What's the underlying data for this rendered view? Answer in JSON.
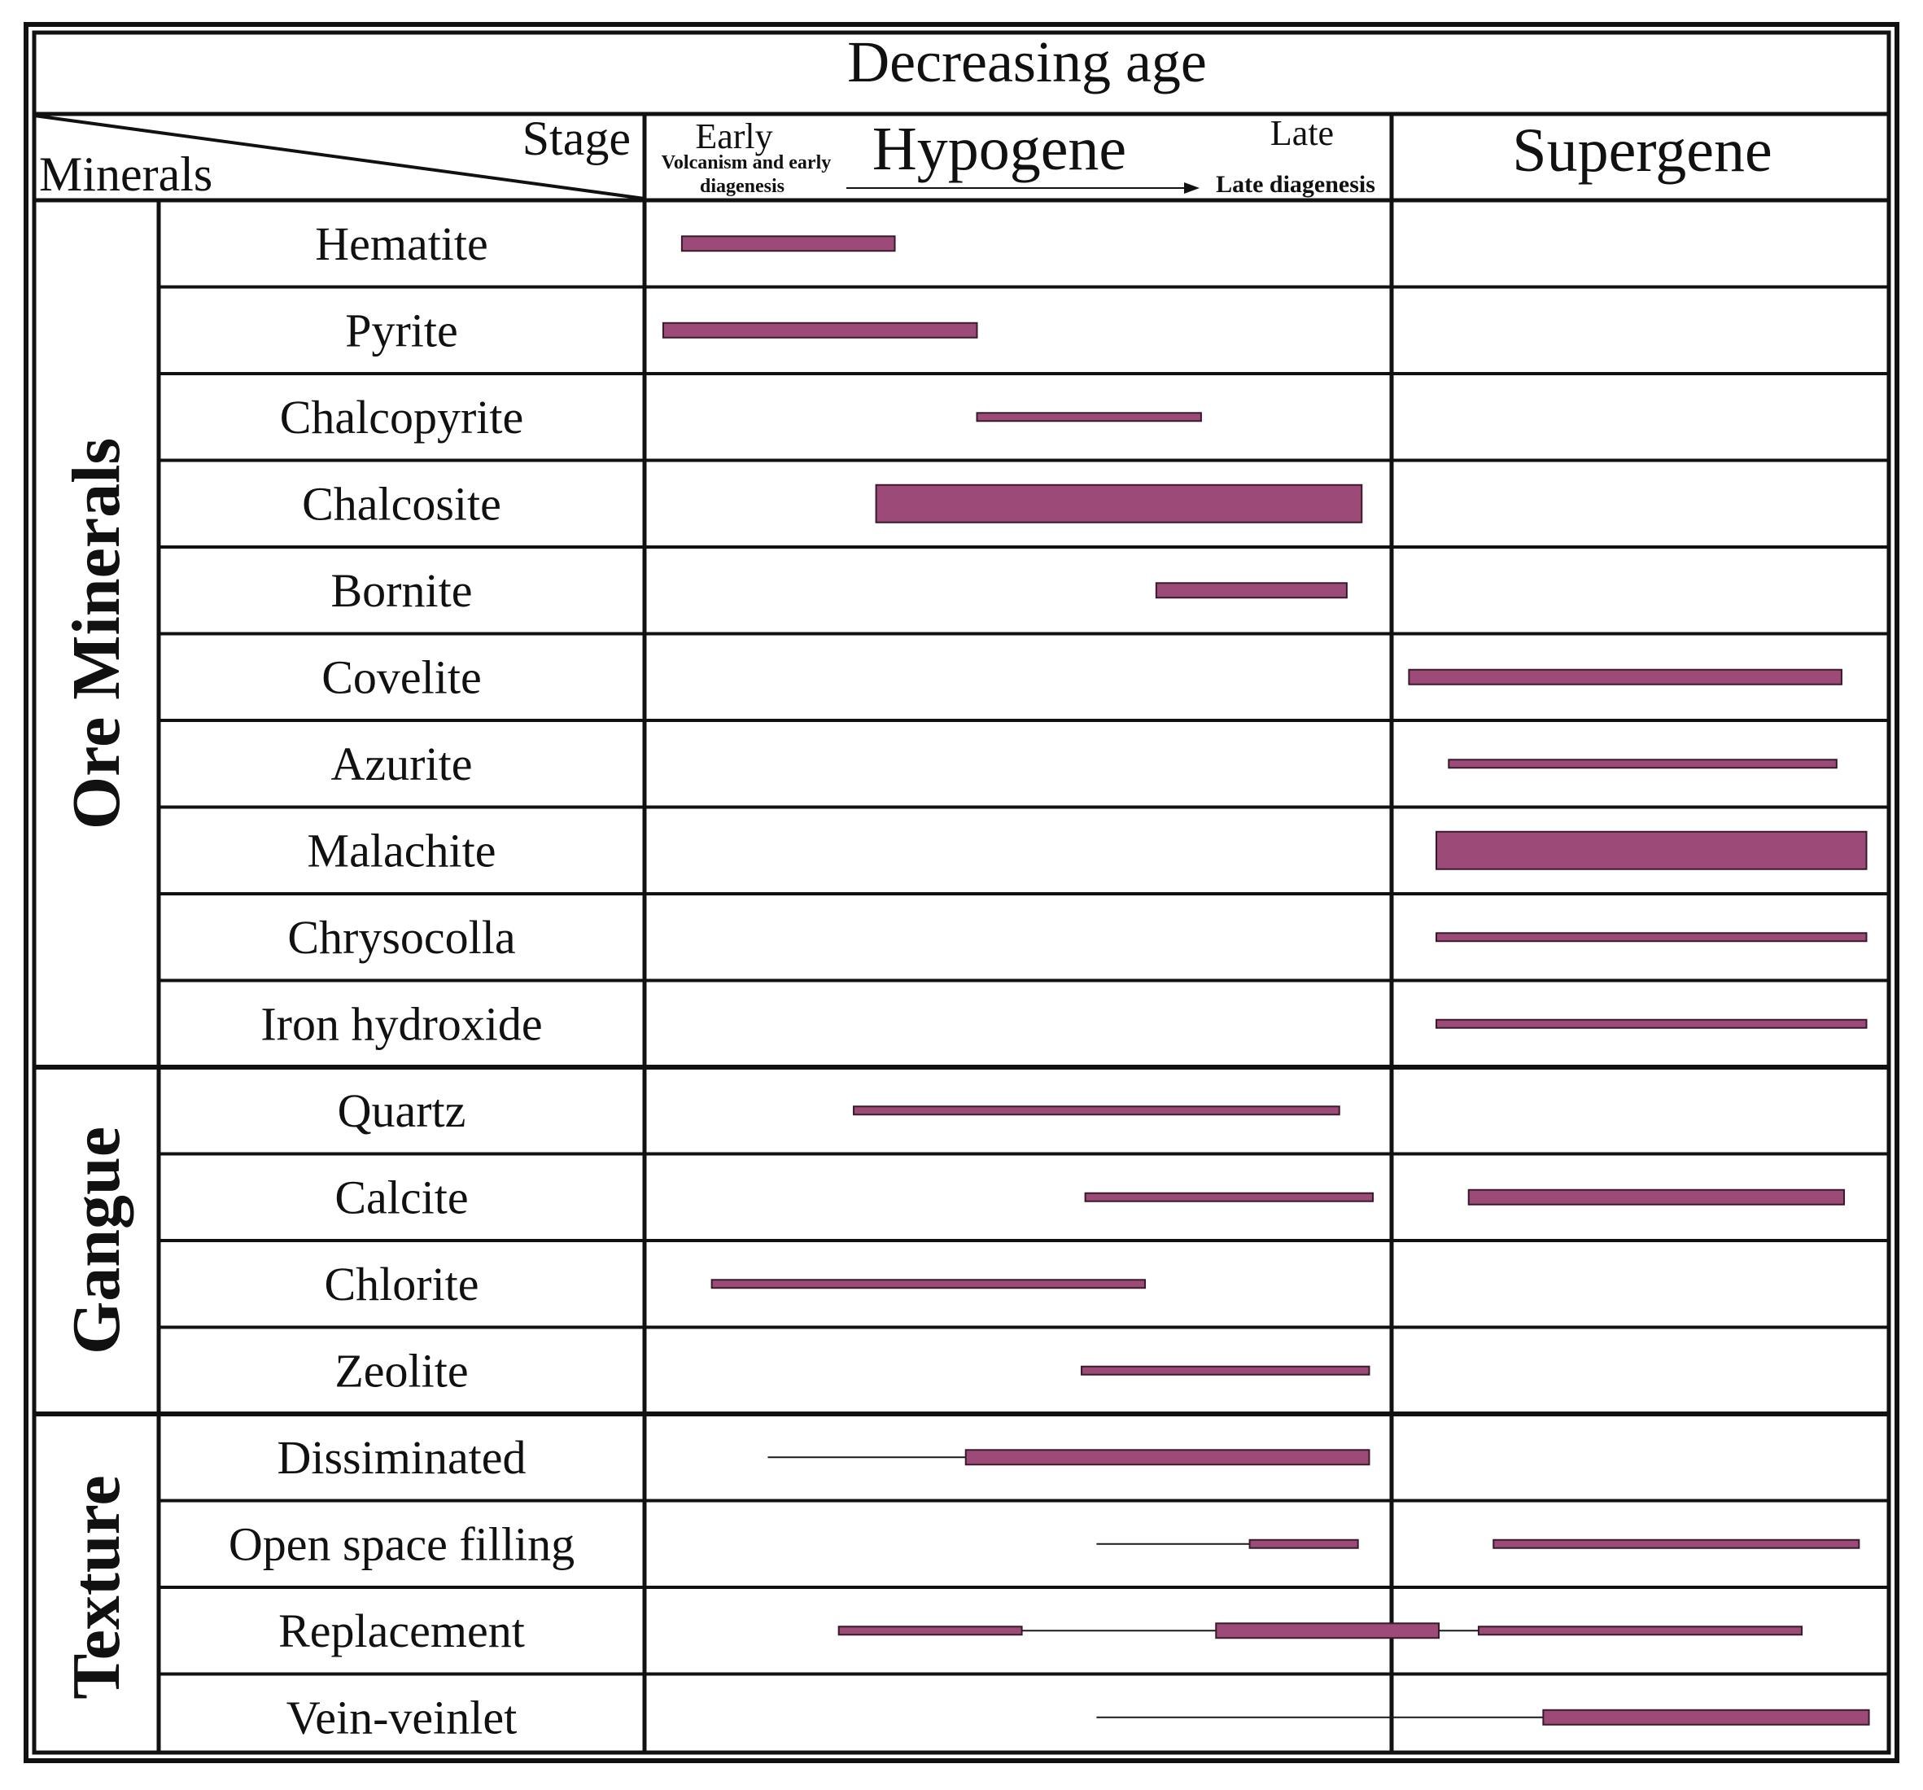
{
  "title": "Decreasing age",
  "header": {
    "stage_label": "Stage",
    "minerals_label": "Minerals",
    "hypogene": "Hypogene",
    "supergene": "Supergene",
    "early": "Early",
    "early_sub1": "Volcanism and early",
    "early_sub2": "diagenesis",
    "late": "Late",
    "late_sub": "Late diagenesis"
  },
  "groups": [
    {
      "label": "Ore Minerals",
      "start": 0,
      "count": 10
    },
    {
      "label": "Gangue",
      "start": 10,
      "count": 4
    },
    {
      "label": "Texture",
      "start": 14,
      "count": 4
    }
  ],
  "colors": {
    "bar_fill": "#9c4a77",
    "line": "#1a1a1a",
    "grid": "#111111"
  },
  "chart_data": {
    "type": "gantt",
    "axis": "Decreasing age",
    "scale_note": "positions in fraction of the Hypogene (0-1) and Supergene (1-2) stage columns",
    "rows": [
      {
        "name": "Hematite",
        "segments": [
          {
            "start": 0.05,
            "end": 0.335,
            "weight": "medium"
          }
        ]
      },
      {
        "name": "Pyrite",
        "segments": [
          {
            "start": 0.025,
            "end": 0.445,
            "weight": "medium"
          }
        ]
      },
      {
        "name": "Chalcopyrite",
        "segments": [
          {
            "start": 0.445,
            "end": 0.745,
            "weight": "thin"
          }
        ]
      },
      {
        "name": "Chalcosite",
        "segments": [
          {
            "start": 0.31,
            "end": 0.96,
            "weight": "thick"
          }
        ]
      },
      {
        "name": "Bornite",
        "segments": [
          {
            "start": 0.685,
            "end": 0.94,
            "weight": "medium"
          }
        ]
      },
      {
        "name": "Covelite",
        "segments": [
          {
            "start": 1.035,
            "end": 1.905,
            "weight": "medium"
          }
        ]
      },
      {
        "name": "Azurite",
        "segments": [
          {
            "start": 1.115,
            "end": 1.895,
            "weight": "thin"
          }
        ]
      },
      {
        "name": "Malachite",
        "segments": [
          {
            "start": 1.09,
            "end": 1.955,
            "weight": "thick"
          }
        ]
      },
      {
        "name": "Chrysocolla",
        "segments": [
          {
            "start": 1.09,
            "end": 1.955,
            "weight": "thin"
          }
        ]
      },
      {
        "name": "Iron hydroxide",
        "segments": [
          {
            "start": 1.09,
            "end": 1.955,
            "weight": "thin"
          }
        ]
      },
      {
        "name": "Quartz",
        "segments": [
          {
            "start": 0.28,
            "end": 0.93,
            "weight": "thin"
          }
        ]
      },
      {
        "name": "Calcite",
        "segments": [
          {
            "start": 0.59,
            "end": 0.975,
            "weight": "thin"
          },
          {
            "start": 1.155,
            "end": 1.91,
            "weight": "medium"
          }
        ]
      },
      {
        "name": "Chlorite",
        "segments": [
          {
            "start": 0.09,
            "end": 0.67,
            "weight": "thin"
          }
        ]
      },
      {
        "name": "Zeolite",
        "segments": [
          {
            "start": 0.585,
            "end": 0.97,
            "weight": "thin"
          }
        ]
      },
      {
        "name": "Dissiminated",
        "segments": [
          {
            "start": 0.165,
            "end": 0.43,
            "weight": "line"
          },
          {
            "start": 0.43,
            "end": 0.97,
            "weight": "medium"
          }
        ]
      },
      {
        "name": "Open space filling",
        "segments": [
          {
            "start": 0.605,
            "end": 0.81,
            "weight": "line"
          },
          {
            "start": 0.81,
            "end": 0.955,
            "weight": "thin"
          },
          {
            "start": 1.205,
            "end": 1.94,
            "weight": "thin"
          }
        ]
      },
      {
        "name": "Replacement",
        "segments": [
          {
            "start": 0.26,
            "end": 0.505,
            "weight": "thin"
          },
          {
            "start": 0.505,
            "end": 0.765,
            "weight": "line"
          },
          {
            "start": 0.765,
            "end": 1.095,
            "weight": "medium"
          },
          {
            "start": 1.095,
            "end": 1.175,
            "weight": "line"
          },
          {
            "start": 1.175,
            "end": 1.825,
            "weight": "thin"
          }
        ]
      },
      {
        "name": "Vein-veinlet",
        "segments": [
          {
            "start": 0.605,
            "end": 1.305,
            "weight": "line"
          },
          {
            "start": 1.305,
            "end": 1.96,
            "weight": "medium"
          }
        ]
      }
    ]
  }
}
